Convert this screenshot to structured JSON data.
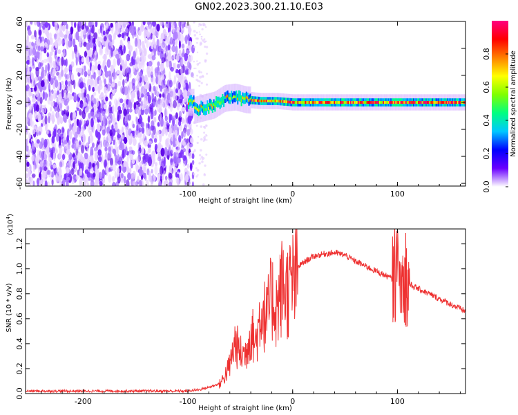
{
  "title": "GN02.2023.300.21.10.E03",
  "chart_data": [
    {
      "type": "heatmap",
      "xlabel": "Height of straight line (km)",
      "ylabel": "Frequency (Hz)",
      "xlim": [
        -255,
        165
      ],
      "ylim": [
        -62,
        60
      ],
      "x_ticks": [
        -200,
        -100,
        0,
        100
      ],
      "y_ticks": [
        -60,
        -40,
        -20,
        0,
        20,
        40,
        60
      ],
      "noise_region_x": [
        -255,
        -95
      ],
      "ridge": [
        {
          "x": -95,
          "y": -6
        },
        {
          "x": -85,
          "y": -4
        },
        {
          "x": -75,
          "y": -2
        },
        {
          "x": -65,
          "y": 3
        },
        {
          "x": -55,
          "y": 4
        },
        {
          "x": -45,
          "y": 2
        },
        {
          "x": -30,
          "y": 1
        },
        {
          "x": -15,
          "y": 1
        },
        {
          "x": 0,
          "y": 0
        },
        {
          "x": 50,
          "y": 0
        },
        {
          "x": 100,
          "y": 0
        },
        {
          "x": 165,
          "y": 0
        }
      ],
      "colorbar": {
        "label": "Normalized spectral amplitude",
        "range": [
          0,
          1
        ],
        "ticks": [
          "0.0",
          "0.2",
          "0.4",
          "0.6",
          "0.8"
        ],
        "colors": [
          "#ffffff",
          "#6a00ff",
          "#0000ff",
          "#00c8ff",
          "#00ff80",
          "#80ff00",
          "#ffff00",
          "#ff8000",
          "#ff0000",
          "#ff0080"
        ]
      }
    },
    {
      "type": "line",
      "xlabel": "Height of straight line (km)",
      "ylabel": "SNR (10 * v/v)",
      "y_scale_label": "(x10",
      "y_scale_exp": "4",
      "y_scale_close": ")",
      "xlim": [
        -255,
        165
      ],
      "ylim": [
        0,
        1.32
      ],
      "x_ticks": [
        -200,
        -100,
        0,
        100
      ],
      "y_ticks": [
        "0.0",
        "0.2",
        "0.4",
        "0.6",
        "0.8",
        "1.0",
        "1.2"
      ],
      "series": [
        {
          "color": "#ee3030",
          "points": [
            [
              -255,
              0.02
            ],
            [
              -200,
              0.02
            ],
            [
              -150,
              0.02
            ],
            [
              -100,
              0.02
            ],
            [
              -90,
              0.03
            ],
            [
              -80,
              0.05
            ],
            [
              -70,
              0.08
            ],
            [
              -65,
              0.15
            ],
            [
              -60,
              0.25
            ],
            [
              -55,
              0.45
            ],
            [
              -50,
              0.35
            ],
            [
              -45,
              0.35
            ],
            [
              -40,
              0.55
            ],
            [
              -35,
              0.45
            ],
            [
              -30,
              0.75
            ],
            [
              -25,
              0.65
            ],
            [
              -20,
              0.85
            ],
            [
              -15,
              0.75
            ],
            [
              -10,
              0.95
            ],
            [
              -5,
              0.9
            ],
            [
              0,
              0.98
            ],
            [
              10,
              1.05
            ],
            [
              20,
              1.1
            ],
            [
              30,
              1.12
            ],
            [
              40,
              1.13
            ],
            [
              50,
              1.11
            ],
            [
              60,
              1.06
            ],
            [
              70,
              1.02
            ],
            [
              80,
              0.98
            ],
            [
              90,
              0.94
            ],
            [
              100,
              0.9
            ],
            [
              110,
              0.88
            ],
            [
              120,
              0.84
            ],
            [
              130,
              0.8
            ],
            [
              140,
              0.76
            ],
            [
              150,
              0.72
            ],
            [
              165,
              0.66
            ]
          ]
        }
      ]
    }
  ]
}
